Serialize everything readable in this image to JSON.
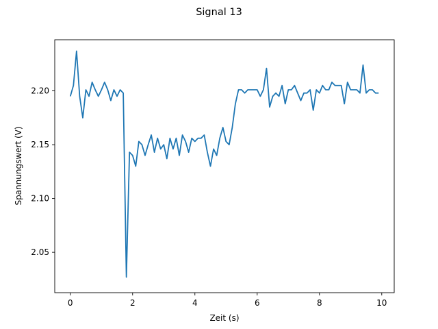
{
  "chart_data": {
    "type": "line",
    "title": "Signal 13",
    "xlabel": "Zeit (s)",
    "ylabel": "Spannungswert (V)",
    "xlim": [
      -0.5,
      10.4
    ],
    "ylim": [
      2.0125,
      2.2475
    ],
    "xticks": [
      0,
      2,
      4,
      6,
      8,
      10
    ],
    "xtick_labels": [
      "0",
      "2",
      "4",
      "6",
      "8",
      "10"
    ],
    "yticks": [
      2.05,
      2.1,
      2.15,
      2.2
    ],
    "ytick_labels": [
      "2.05",
      "2.10",
      "2.15",
      "2.20"
    ],
    "grid": false,
    "color": "#1f77b4",
    "series": [
      {
        "x": [
          0.0,
          0.1,
          0.2,
          0.3,
          0.4,
          0.5,
          0.6,
          0.7,
          0.8,
          0.9,
          1.0,
          1.1,
          1.2,
          1.3,
          1.4,
          1.5,
          1.6,
          1.7,
          1.8,
          1.9,
          2.0,
          2.1,
          2.2,
          2.3,
          2.4,
          2.5,
          2.6,
          2.7,
          2.8,
          2.9,
          3.0,
          3.1,
          3.2,
          3.3,
          3.4,
          3.5,
          3.6,
          3.7,
          3.8,
          3.9,
          4.0,
          4.1,
          4.2,
          4.3,
          4.4,
          4.5,
          4.6,
          4.7,
          4.8,
          4.9,
          5.0,
          5.1,
          5.2,
          5.3,
          5.4,
          5.5,
          5.6,
          5.7,
          5.8,
          5.9,
          6.0,
          6.1,
          6.2,
          6.3,
          6.4,
          6.5,
          6.6,
          6.7,
          6.8,
          6.9,
          7.0,
          7.1,
          7.2,
          7.3,
          7.4,
          7.5,
          7.6,
          7.7,
          7.8,
          7.9,
          8.0,
          8.1,
          8.2,
          8.3,
          8.4,
          8.5,
          8.6,
          8.7,
          8.8,
          8.9,
          9.0,
          9.1,
          9.2,
          9.3,
          9.4,
          9.5,
          9.6,
          9.7,
          9.8,
          9.9
        ],
        "values": [
          2.195,
          2.205,
          2.237,
          2.195,
          2.175,
          2.201,
          2.195,
          2.208,
          2.201,
          2.195,
          2.201,
          2.208,
          2.201,
          2.191,
          2.201,
          2.195,
          2.201,
          2.198,
          2.027,
          2.143,
          2.14,
          2.13,
          2.153,
          2.15,
          2.14,
          2.15,
          2.159,
          2.143,
          2.156,
          2.146,
          2.15,
          2.137,
          2.156,
          2.146,
          2.156,
          2.14,
          2.159,
          2.153,
          2.143,
          2.156,
          2.153,
          2.156,
          2.156,
          2.159,
          2.143,
          2.13,
          2.146,
          2.14,
          2.156,
          2.166,
          2.153,
          2.15,
          2.166,
          2.188,
          2.201,
          2.201,
          2.198,
          2.201,
          2.201,
          2.201,
          2.201,
          2.195,
          2.201,
          2.221,
          2.185,
          2.195,
          2.198,
          2.195,
          2.205,
          2.188,
          2.201,
          2.201,
          2.205,
          2.198,
          2.191,
          2.198,
          2.198,
          2.201,
          2.182,
          2.201,
          2.198,
          2.205,
          2.201,
          2.201,
          2.208,
          2.205,
          2.205,
          2.205,
          2.188,
          2.208,
          2.201,
          2.201,
          2.201,
          2.198,
          2.224,
          2.198,
          2.201,
          2.201,
          2.198,
          2.198
        ]
      }
    ]
  }
}
